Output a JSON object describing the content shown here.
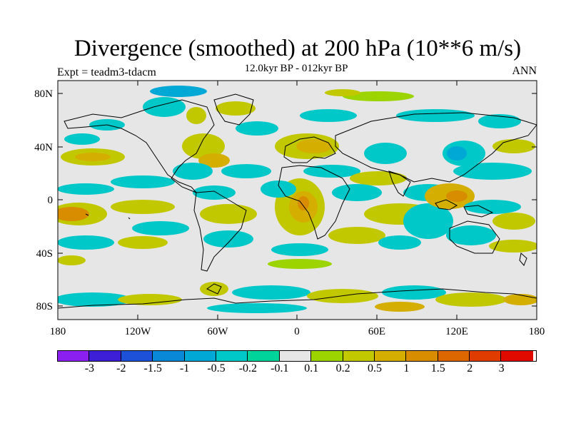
{
  "title": "Divergence (smoothed) at 200 hPa (10**6 m/s)",
  "subtitle": "12.0kyr BP - 012kyr BP",
  "expt": "Expt = teadm3-tdacm",
  "season": "ANN",
  "axes": {
    "y_ticks": [
      "80N",
      "40N",
      "0",
      "40S",
      "80S"
    ],
    "x_ticks": [
      "180",
      "120W",
      "60W",
      "0",
      "60E",
      "120E",
      "180"
    ]
  },
  "colorbar": {
    "colors": [
      "#8a1ff0",
      "#3d1fd8",
      "#1d52d8",
      "#0a88d8",
      "#00a8d6",
      "#00c8c8",
      "#00d49a",
      "#e6e6e6",
      "#9cd400",
      "#c2c800",
      "#d4ae00",
      "#d88c00",
      "#dc6600",
      "#e03c00",
      "#e00a00"
    ],
    "labels": [
      "-3",
      "-2",
      "-1.5",
      "-1",
      "-0.5",
      "-0.2",
      "-0.1",
      "0.1",
      "0.2",
      "0.5",
      "1",
      "1.5",
      "2",
      "3"
    ]
  }
}
